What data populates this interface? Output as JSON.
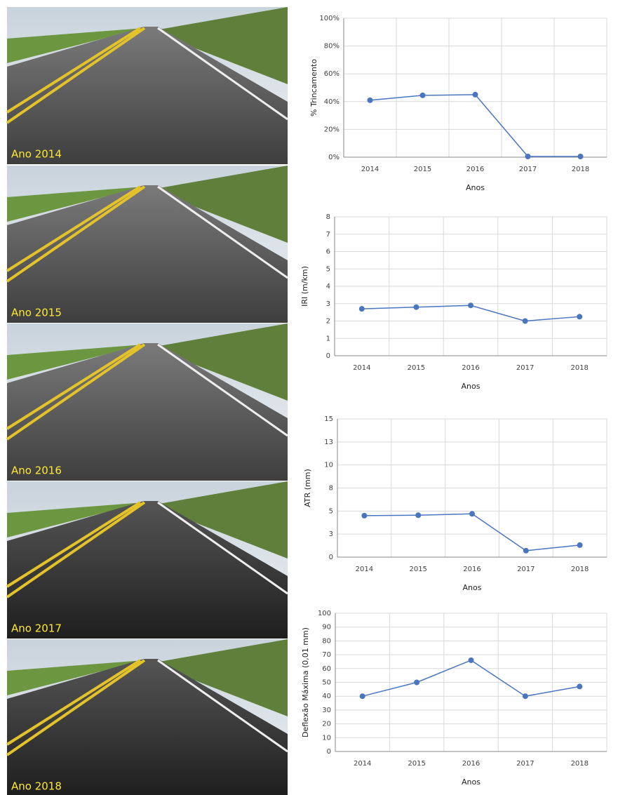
{
  "photos": [
    {
      "label": "Ano 2014"
    },
    {
      "label": "Ano 2015"
    },
    {
      "label": "Ano 2016"
    },
    {
      "label": "Ano 2017"
    },
    {
      "label": "Ano 2018"
    }
  ],
  "chart_data": [
    {
      "type": "line",
      "ylabel": "% Trincamento",
      "xlabel": "Anos",
      "categories": [
        "2014",
        "2015",
        "2016",
        "2017",
        "2018"
      ],
      "values": [
        41,
        44.5,
        45,
        0.5,
        0.5
      ],
      "color": "#4a76c0",
      "ylim": [
        0,
        100
      ],
      "yticks": [
        {
          "value": 0,
          "label": "0%"
        },
        {
          "value": 20,
          "label": "20%"
        },
        {
          "value": 40,
          "label": "40%"
        },
        {
          "value": 60,
          "label": "60%"
        },
        {
          "value": 80,
          "label": "80%"
        },
        {
          "value": 100,
          "label": "100%"
        }
      ],
      "grid": true
    },
    {
      "type": "line",
      "ylabel": "IRI (m/km)",
      "xlabel": "Anos",
      "categories": [
        "2014",
        "2015",
        "2016",
        "2017",
        "2018"
      ],
      "values": [
        2.7,
        2.8,
        2.9,
        2.0,
        2.25
      ],
      "color": "#4a76c0",
      "ylim": [
        0,
        8
      ],
      "yticks": [
        0,
        1,
        2,
        3,
        4,
        5,
        6,
        7,
        8
      ],
      "grid": true
    },
    {
      "type": "line",
      "ylabel": "ATR (mm)",
      "xlabel": "Anos",
      "categories": [
        "2014",
        "2015",
        "2016",
        "2017",
        "2018"
      ],
      "values": [
        4.5,
        4.55,
        4.7,
        0.7,
        1.3
      ],
      "color": "#4a76c0",
      "ylim": [
        0,
        15
      ],
      "yticks": [
        0,
        {
          "value": 2.5,
          "label": "3"
        },
        5,
        {
          "value": 7.5,
          "label": "8"
        },
        10,
        {
          "value": 12.5,
          "label": "13"
        },
        15
      ],
      "grid": true
    },
    {
      "type": "line",
      "ylabel": "Deflexão Máxima (0,01 mm)",
      "xlabel": "Anos",
      "categories": [
        "2014",
        "2015",
        "2016",
        "2017",
        "2018"
      ],
      "values": [
        40,
        50,
        66,
        40,
        47
      ],
      "color": "#4a76c0",
      "ylim": [
        0,
        100
      ],
      "yticks": [
        0,
        10,
        20,
        30,
        40,
        50,
        60,
        70,
        80,
        90,
        100
      ],
      "grid": true
    }
  ]
}
